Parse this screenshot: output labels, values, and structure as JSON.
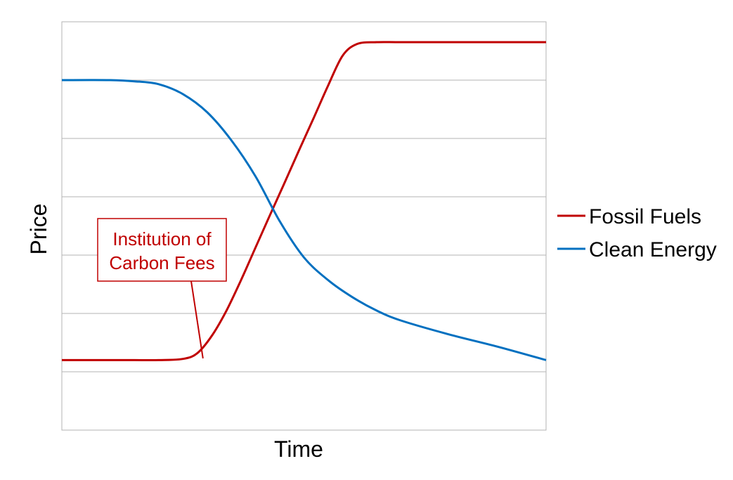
{
  "chart_data": {
    "type": "line",
    "xlabel": "Time",
    "ylabel": "Price",
    "xlim": [
      0,
      100
    ],
    "ylim": [
      0,
      7
    ],
    "grid": true,
    "legend_position": "right",
    "axis_tick_labels": "none",
    "series": [
      {
        "name": "Fossil Fuels",
        "color": "#C00000",
        "points": [
          [
            0,
            1.2
          ],
          [
            5,
            1.2
          ],
          [
            10,
            1.2
          ],
          [
            15,
            1.2
          ],
          [
            20,
            1.2
          ],
          [
            25,
            1.22
          ],
          [
            28,
            1.32
          ],
          [
            31,
            1.62
          ],
          [
            34,
            2.05
          ],
          [
            37,
            2.57
          ],
          [
            40,
            3.13
          ],
          [
            43,
            3.69
          ],
          [
            46,
            4.24
          ],
          [
            49,
            4.8
          ],
          [
            52,
            5.35
          ],
          [
            55,
            5.91
          ],
          [
            58,
            6.42
          ],
          [
            61,
            6.62
          ],
          [
            65,
            6.65
          ],
          [
            70,
            6.65
          ],
          [
            80,
            6.65
          ],
          [
            90,
            6.65
          ],
          [
            100,
            6.65
          ]
        ]
      },
      {
        "name": "Clean Energy",
        "color": "#0070C0",
        "points": [
          [
            0,
            6.0
          ],
          [
            10,
            6.0
          ],
          [
            15,
            5.98
          ],
          [
            20,
            5.93
          ],
          [
            25,
            5.76
          ],
          [
            30,
            5.45
          ],
          [
            35,
            4.97
          ],
          [
            40,
            4.35
          ],
          [
            45,
            3.58
          ],
          [
            50,
            2.96
          ],
          [
            55,
            2.57
          ],
          [
            60,
            2.28
          ],
          [
            65,
            2.05
          ],
          [
            70,
            1.88
          ],
          [
            80,
            1.64
          ],
          [
            90,
            1.43
          ],
          [
            100,
            1.2
          ]
        ]
      }
    ],
    "annotations": [
      {
        "text_line1": "Institution of",
        "text_line2": "Carbon Fees",
        "color": "#C00000",
        "points_to_x": 29,
        "points_to_y": 1.35
      }
    ]
  }
}
